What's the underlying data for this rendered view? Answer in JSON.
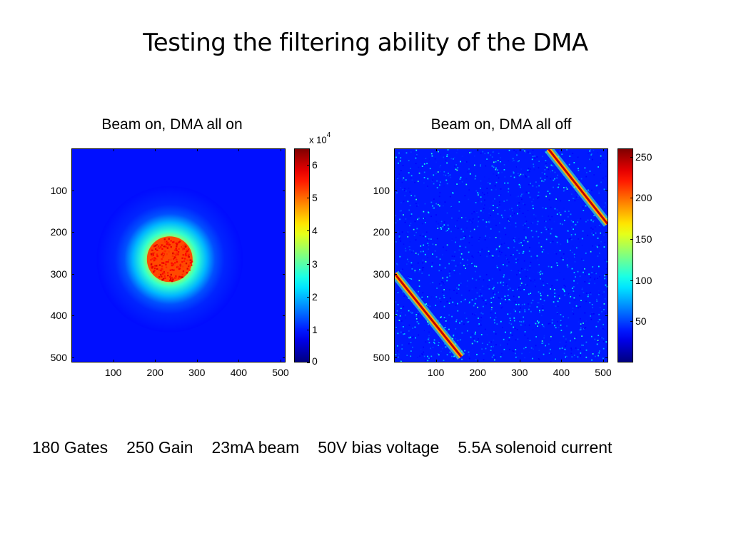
{
  "slide": {
    "title": "Testing the filtering ability of the DMA"
  },
  "chart_data": [
    {
      "type": "heatmap",
      "title": "Beam on, DMA all on",
      "xlim": [
        1,
        512
      ],
      "ylim": [
        512,
        1
      ],
      "xticks": [
        "100",
        "200",
        "300",
        "400",
        "500"
      ],
      "yticks": [
        "100",
        "200",
        "300",
        "400",
        "500"
      ],
      "colormap": "jet",
      "colorbar": {
        "range": [
          0,
          6.5
        ],
        "ticks": [
          "0",
          "1",
          "2",
          "3",
          "4",
          "5",
          "6"
        ],
        "exponent_label": "x 10",
        "exponent_power": "4"
      },
      "features": [
        {
          "kind": "circular beam spot",
          "center_x": 235,
          "center_y": 265,
          "core_radius": 55,
          "halo_radius": 110,
          "peak_value": 55000
        }
      ]
    },
    {
      "type": "heatmap",
      "title": "Beam on, DMA all off",
      "xlim": [
        1,
        512
      ],
      "ylim": [
        512,
        1
      ],
      "xticks": [
        "100",
        "200",
        "300",
        "400",
        "500"
      ],
      "yticks": [
        "100",
        "200",
        "300",
        "400",
        "500"
      ],
      "colormap": "jet",
      "colorbar": {
        "range": [
          0,
          260
        ],
        "ticks": [
          "50",
          "100",
          "150",
          "200",
          "250"
        ]
      },
      "features": [
        {
          "kind": "diagonal streak",
          "x0": 370,
          "y0": 0,
          "x1": 512,
          "y1": 180,
          "peak_value": 250
        },
        {
          "kind": "diagonal streak",
          "x0": 0,
          "y0": 300,
          "x1": 160,
          "y1": 500,
          "peak_value": 250
        },
        {
          "kind": "uniform noise background",
          "mean_value": 25
        }
      ]
    }
  ],
  "footer": {
    "items": [
      "180 Gates",
      "250 Gain",
      "23mA beam",
      "50V bias voltage",
      "5.5A solenoid current"
    ]
  },
  "colors": {
    "jet_dark_blue": "#00008f",
    "jet_background_blue": "#1a3ae0",
    "jet_red": "#800000"
  }
}
